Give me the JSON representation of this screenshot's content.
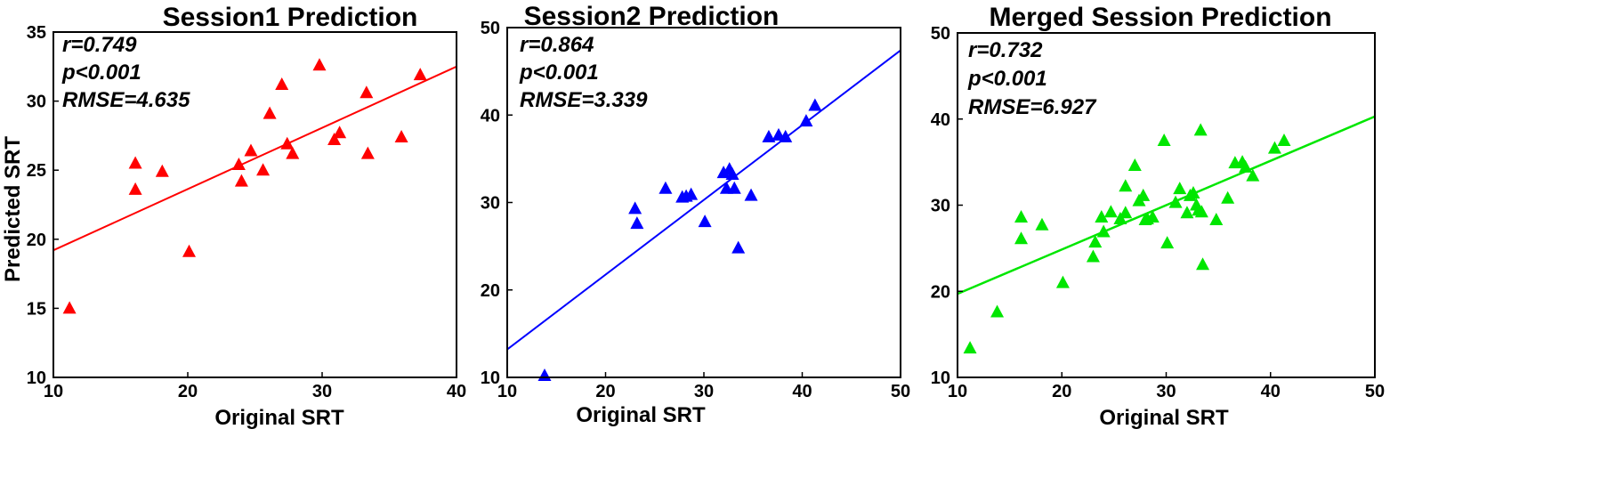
{
  "chart_data": [
    {
      "type": "scatter",
      "title": "Session1 Prediction",
      "xlabel": "Original SRT",
      "ylabel": "Predicted SRT",
      "xlim": [
        10,
        40
      ],
      "ylim": [
        10,
        35
      ],
      "xticks": [
        10,
        20,
        30,
        40
      ],
      "yticks": [
        10,
        15,
        20,
        25,
        30,
        35
      ],
      "grid": false,
      "color": "#ff0000",
      "stats": [
        "r=0.749",
        "p<0.001",
        "RMSE=4.635"
      ],
      "fit_line": {
        "x": [
          10,
          40
        ],
        "y": [
          19.2,
          32.5
        ]
      },
      "points": {
        "x": [
          11.2,
          16.1,
          16.1,
          18.1,
          20.1,
          23.8,
          24.0,
          24.7,
          25.6,
          26.1,
          27.0,
          27.4,
          27.8,
          29.8,
          30.9,
          31.3,
          33.3,
          33.4,
          35.9,
          37.3
        ],
        "y": [
          15.0,
          25.5,
          23.6,
          24.9,
          19.1,
          25.4,
          24.2,
          26.4,
          25.0,
          29.1,
          31.2,
          26.9,
          26.2,
          32.6,
          27.2,
          27.7,
          30.6,
          26.2,
          27.4,
          31.9
        ]
      }
    },
    {
      "type": "scatter",
      "title": "Session2 Prediction",
      "xlabel": "Original SRT",
      "ylabel": "",
      "xlim": [
        10,
        50
      ],
      "ylim": [
        10,
        50
      ],
      "xticks": [
        10,
        20,
        30,
        40,
        50
      ],
      "yticks": [
        10,
        20,
        30,
        40,
        50
      ],
      "grid": false,
      "color": "#0000ff",
      "stats": [
        "r=0.864",
        "p<0.001",
        "RMSE=3.339"
      ],
      "fit_line": {
        "x": [
          10,
          50
        ],
        "y": [
          13.2,
          47.4
        ]
      },
      "points": {
        "x": [
          13.8,
          23.0,
          23.2,
          26.1,
          27.8,
          28.2,
          28.7,
          30.1,
          32.0,
          32.3,
          32.6,
          32.9,
          33.1,
          33.5,
          34.8,
          36.6,
          37.6,
          38.3,
          40.4,
          41.3
        ],
        "y": [
          10.2,
          29.3,
          27.6,
          31.6,
          30.6,
          30.7,
          30.9,
          27.8,
          33.4,
          31.6,
          33.8,
          33.2,
          31.6,
          24.8,
          30.8,
          37.5,
          37.7,
          37.5,
          39.3,
          41.1
        ]
      }
    },
    {
      "type": "scatter",
      "title": "Merged Session Prediction",
      "xlabel": "Original SRT",
      "ylabel": "",
      "xlim": [
        10,
        50
      ],
      "ylim": [
        10,
        50
      ],
      "xticks": [
        10,
        20,
        30,
        40,
        50
      ],
      "yticks": [
        10,
        20,
        30,
        40,
        50
      ],
      "grid": false,
      "color": "#00e600",
      "stats": [
        "r=0.732",
        "p<0.001",
        "RMSE=6.927"
      ],
      "fit_line": {
        "x": [
          10,
          50
        ],
        "y": [
          19.7,
          40.3
        ]
      },
      "points": {
        "x": [
          11.2,
          13.8,
          16.1,
          16.1,
          18.1,
          20.1,
          23.0,
          23.2,
          23.8,
          24.0,
          24.7,
          25.6,
          26.1,
          26.1,
          27.0,
          27.4,
          27.8,
          28.0,
          28.2,
          28.7,
          29.8,
          30.1,
          30.9,
          31.3,
          32.0,
          32.3,
          32.6,
          32.9,
          33.1,
          33.3,
          33.4,
          33.5,
          34.8,
          35.9,
          36.6,
          37.3,
          37.6,
          38.3,
          40.4,
          41.3
        ],
        "y": [
          13.4,
          17.6,
          28.6,
          26.1,
          27.7,
          21.0,
          24.0,
          25.7,
          28.6,
          26.9,
          29.2,
          28.4,
          32.2,
          29.1,
          34.6,
          30.5,
          31.1,
          28.3,
          28.4,
          28.6,
          37.5,
          25.6,
          30.3,
          31.9,
          29.1,
          31.1,
          31.4,
          30.0,
          29.4,
          38.7,
          29.2,
          23.1,
          28.3,
          30.8,
          34.9,
          35.0,
          34.4,
          33.4,
          36.6,
          37.5
        ]
      }
    }
  ]
}
